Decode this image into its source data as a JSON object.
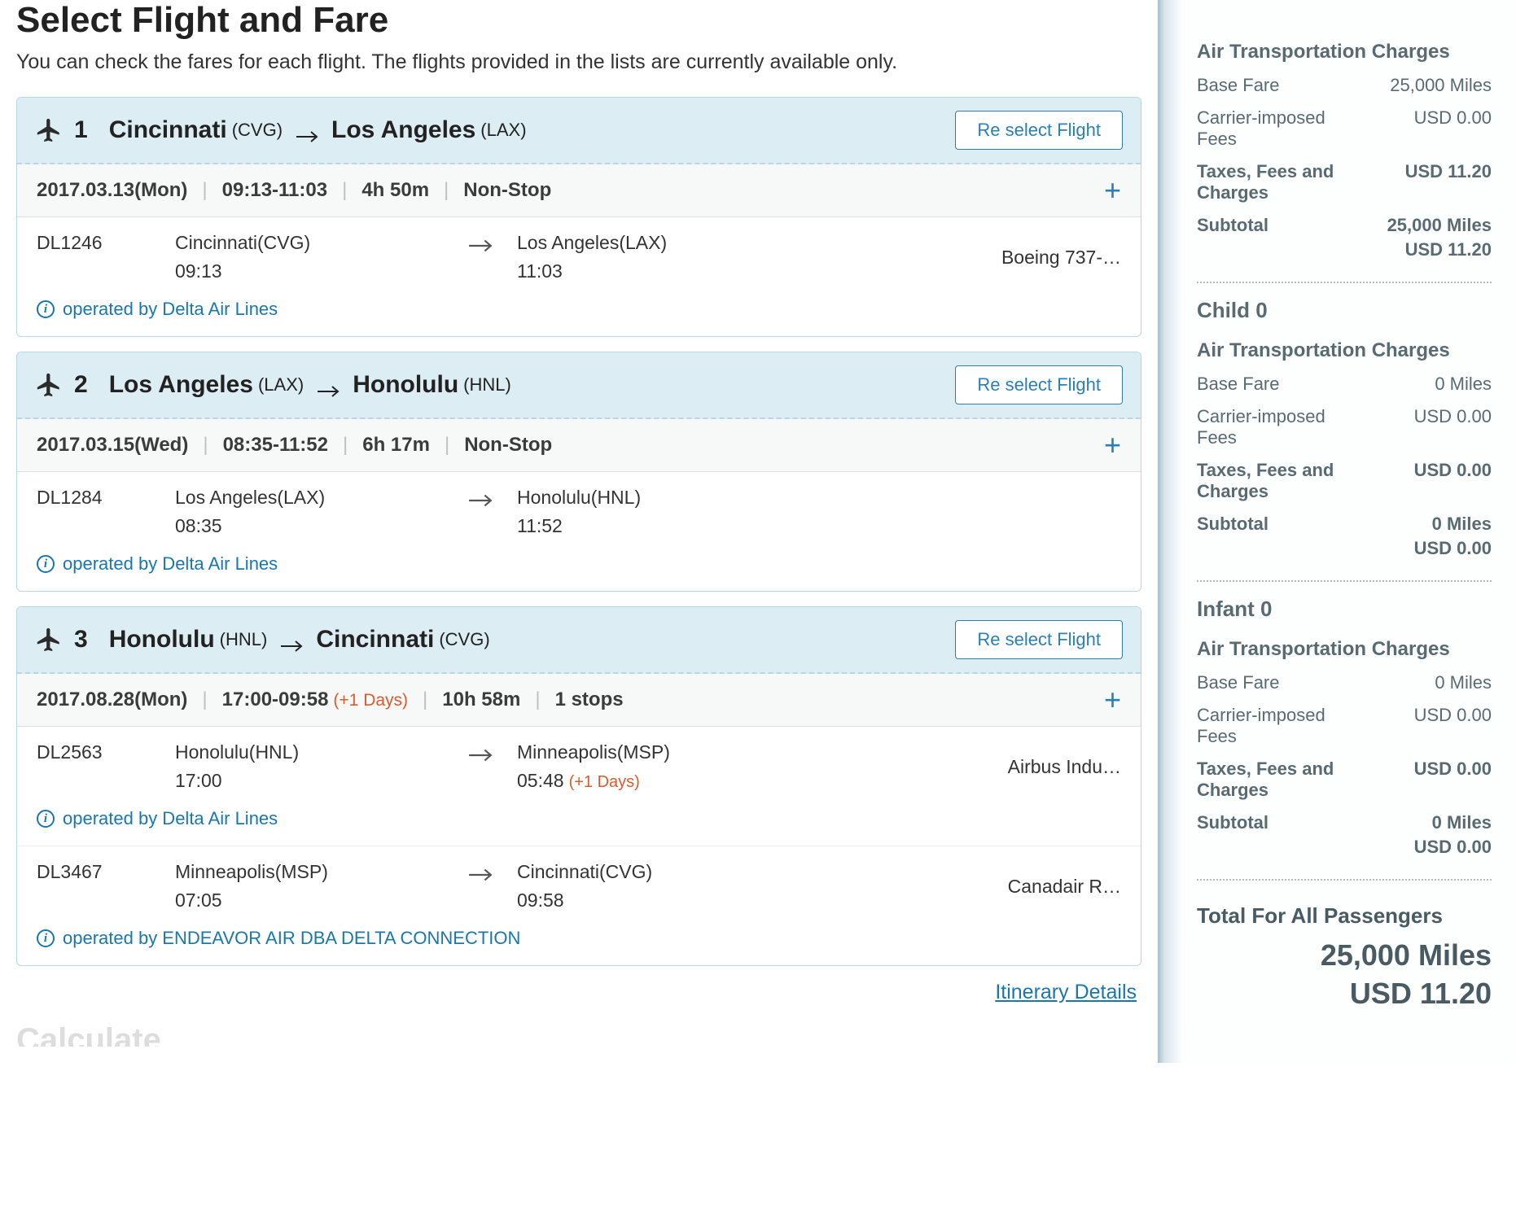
{
  "page": {
    "title": "Select Flight and Fare",
    "subtitle": "You can check the fares for each flight. The flights provided in the lists are currently available only.",
    "reselect_label": "Re select Flight",
    "itinerary_link": "Itinerary Details",
    "calculate_title": "Calculate"
  },
  "flights": [
    {
      "num": "1",
      "from_city": "Cincinnati",
      "from_code": "(CVG)",
      "to_city": "Los Angeles",
      "to_code": "(LAX)",
      "date": "2017.03.13(Mon)",
      "times": "09:13-11:03",
      "times_plus": "",
      "duration": "4h 50m",
      "stops": "Non-Stop",
      "segments": [
        {
          "flightno": "DL1246",
          "dep_city": "Cincinnati(CVG)",
          "dep_time": "09:13",
          "arr_city": "Los Angeles(LAX)",
          "arr_time": "11:03",
          "arr_plus": "",
          "aircraft": "Boeing 737-…",
          "operator": "operated by Delta Air Lines"
        }
      ]
    },
    {
      "num": "2",
      "from_city": "Los Angeles",
      "from_code": "(LAX)",
      "to_city": "Honolulu",
      "to_code": "(HNL)",
      "date": "2017.03.15(Wed)",
      "times": "08:35-11:52",
      "times_plus": "",
      "duration": "6h 17m",
      "stops": "Non-Stop",
      "segments": [
        {
          "flightno": "DL1284",
          "dep_city": "Los Angeles(LAX)",
          "dep_time": "08:35",
          "arr_city": "Honolulu(HNL)",
          "arr_time": "11:52",
          "arr_plus": "",
          "aircraft": "",
          "operator": "operated by Delta Air Lines"
        }
      ]
    },
    {
      "num": "3",
      "from_city": "Honolulu",
      "from_code": "(HNL)",
      "to_city": "Cincinnati",
      "to_code": "(CVG)",
      "date": "2017.08.28(Mon)",
      "times": "17:00-09:58",
      "times_plus": "(+1 Days)",
      "duration": "10h 58m",
      "stops": "1 stops",
      "segments": [
        {
          "flightno": "DL2563",
          "dep_city": "Honolulu(HNL)",
          "dep_time": "17:00",
          "arr_city": "Minneapolis(MSP)",
          "arr_time": "05:48",
          "arr_plus": "(+1 Days)",
          "aircraft": "Airbus Indu…",
          "operator": "operated by Delta Air Lines"
        },
        {
          "flightno": "DL3467",
          "dep_city": "Minneapolis(MSP)",
          "dep_time": "07:05",
          "arr_city": "Cincinnati(CVG)",
          "arr_time": "09:58",
          "arr_plus": "",
          "aircraft": "Canadair R…",
          "operator": "operated by ENDEAVOR AIR DBA DELTA CONNECTION"
        }
      ]
    }
  ],
  "sidebar": {
    "charges_title": "Air Transportation Charges",
    "base_label": "Base Fare",
    "carrier_label": "Carrier-imposed Fees",
    "taxes_label": "Taxes, Fees and Charges",
    "subtotal_label": "Subtotal",
    "groups": [
      {
        "pax": "",
        "base": "25,000 Miles",
        "carrier": "USD 0.00",
        "taxes": "USD 11.20",
        "sub1": "25,000 Miles",
        "sub2": "USD 11.20"
      },
      {
        "pax": "Child 0",
        "base": "0 Miles",
        "carrier": "USD 0.00",
        "taxes": "USD 0.00",
        "sub1": "0 Miles",
        "sub2": "USD 0.00"
      },
      {
        "pax": "Infant 0",
        "base": "0 Miles",
        "carrier": "USD 0.00",
        "taxes": "USD 0.00",
        "sub1": "0 Miles",
        "sub2": "USD 0.00"
      }
    ],
    "total_title": "Total For All Passengers",
    "total_miles": "25,000 Miles",
    "total_usd": "USD 11.20"
  }
}
